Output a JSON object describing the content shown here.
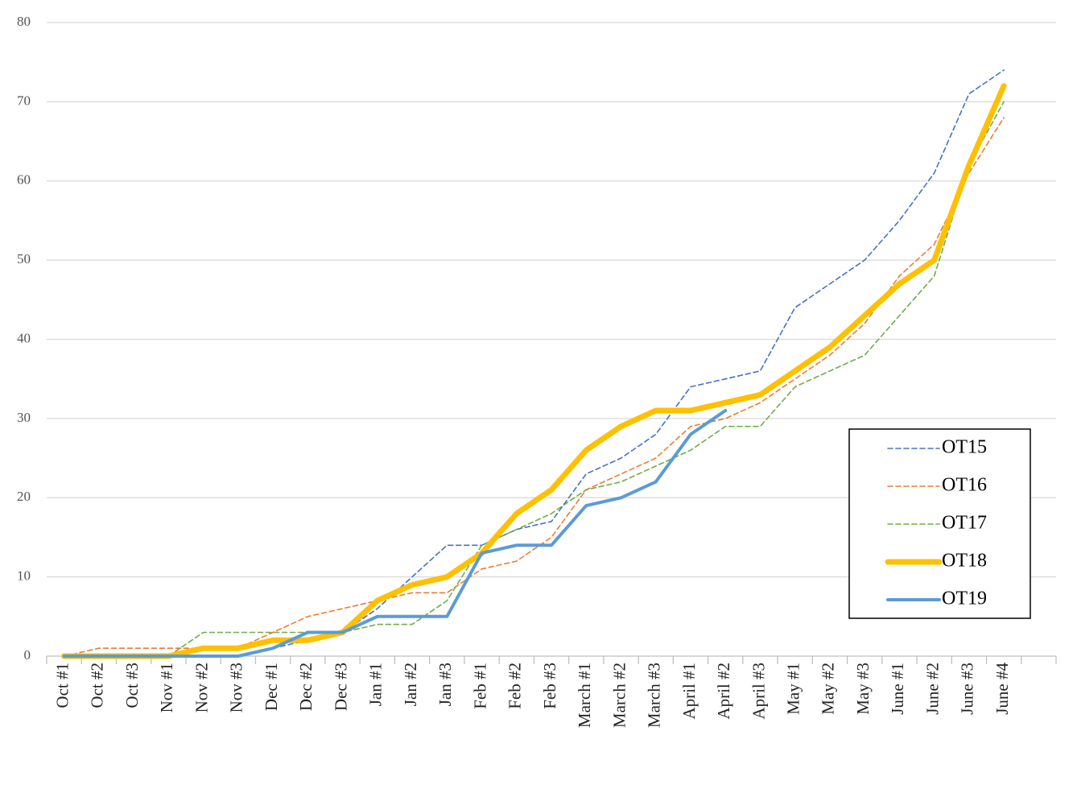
{
  "chart_data": {
    "type": "line",
    "categories": [
      "Oct #1",
      "Oct #2",
      "Oct #3",
      "Nov #1",
      "Nov #2",
      "Nov #3",
      "Dec #1",
      "Dec #2",
      "Dec #3",
      "Jan #1",
      "Jan #2",
      "Jan #3",
      "Feb #1",
      "Feb #2",
      "Feb #3",
      "March #1",
      "March #2",
      "March #3",
      "April #1",
      "April #2",
      "April #3",
      "May #1",
      "May #2",
      "May #3",
      "June #1",
      "June #2",
      "June #3",
      "June #4",
      null
    ],
    "series": [
      {
        "name": "OT15",
        "color": "#4472c4",
        "linestyle": "dashed",
        "values": [
          0,
          0,
          0,
          0,
          0,
          0,
          1,
          2,
          3,
          6,
          10,
          14,
          14,
          16,
          17,
          23,
          25,
          28,
          34,
          35,
          36,
          44,
          47,
          50,
          55,
          61,
          71,
          74,
          null
        ]
      },
      {
        "name": "OT16",
        "color": "#ed7d31",
        "linestyle": "dashed",
        "values": [
          0,
          1,
          1,
          1,
          1,
          1,
          3,
          5,
          6,
          7,
          8,
          8,
          11,
          12,
          15,
          21,
          23,
          25,
          29,
          30,
          32,
          35,
          38,
          42,
          48,
          52,
          61,
          68,
          null
        ]
      },
      {
        "name": "OT17",
        "color": "#70ad47",
        "linestyle": "dashed",
        "values": [
          0,
          0,
          0,
          0,
          3,
          3,
          3,
          3,
          3,
          4,
          4,
          7,
          14,
          16,
          18,
          21,
          22,
          24,
          26,
          29,
          29,
          34,
          36,
          38,
          43,
          48,
          62,
          70,
          null
        ]
      },
      {
        "name": "OT18",
        "color": "#ffc000",
        "linestyle": "solid",
        "values": [
          0,
          0,
          0,
          0,
          1,
          1,
          2,
          2,
          3,
          7,
          9,
          10,
          13,
          18,
          21,
          26,
          29,
          31,
          31,
          32,
          33,
          36,
          39,
          43,
          47,
          50,
          62,
          72,
          null
        ]
      },
      {
        "name": "OT19",
        "color": "#5b9bd5",
        "linestyle": "solid",
        "values": [
          0,
          0,
          0,
          0,
          0,
          0,
          1,
          3,
          3,
          5,
          5,
          5,
          13,
          14,
          14,
          19,
          20,
          22,
          28,
          31,
          null,
          null,
          null,
          null,
          null,
          null,
          null,
          null,
          null
        ]
      }
    ],
    "ylim": [
      0,
      80
    ],
    "yticks": [
      0,
      10,
      20,
      30,
      40,
      50,
      60,
      70,
      80
    ],
    "grid": true,
    "legend": "right"
  }
}
